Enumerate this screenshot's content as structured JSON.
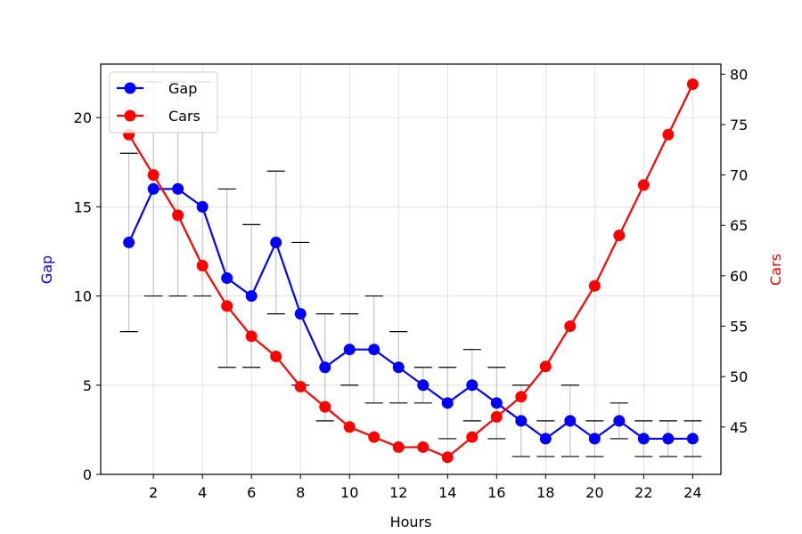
{
  "chart_data": {
    "type": "line",
    "xlabel": "Hours",
    "ylabel_left": "Gap",
    "ylabel_right": "Cars",
    "x": [
      1,
      2,
      3,
      4,
      5,
      6,
      7,
      8,
      9,
      10,
      11,
      12,
      13,
      14,
      15,
      16,
      17,
      18,
      19,
      20,
      21,
      22,
      23,
      24
    ],
    "x_ticks": [
      2,
      4,
      6,
      8,
      10,
      12,
      14,
      16,
      18,
      20,
      22,
      24
    ],
    "y_left_ticks": [
      0,
      5,
      10,
      15,
      20
    ],
    "y_right_ticks": [
      45,
      50,
      55,
      60,
      65,
      70,
      75,
      80
    ],
    "xlim": [
      -0.15,
      25.15
    ],
    "ylim_left": [
      0,
      23
    ],
    "ylim_right": [
      40.3,
      81.0
    ],
    "grid": true,
    "legend_position": "upper-left",
    "series": [
      {
        "name": "Gap",
        "axis": "left",
        "color": "#0000ff",
        "values": [
          13,
          16,
          16,
          15,
          11,
          10,
          13,
          9,
          6,
          7,
          7,
          6,
          5,
          4,
          5,
          4,
          3,
          2,
          3,
          2,
          3,
          2,
          2,
          2
        ],
        "error_low": [
          8,
          10,
          10,
          10,
          6,
          6,
          9,
          5,
          3,
          5,
          4,
          4,
          4,
          2,
          3,
          2,
          1,
          1,
          1,
          1,
          2,
          1,
          1,
          1
        ],
        "error_high": [
          18,
          22,
          22,
          22,
          16,
          14,
          17,
          13,
          9,
          9,
          10,
          8,
          6,
          6,
          7,
          6,
          5,
          3,
          5,
          3,
          4,
          3,
          3,
          3
        ]
      },
      {
        "name": "Cars",
        "axis": "right",
        "color": "#ff0000",
        "values": [
          74,
          70,
          66,
          61,
          57,
          54,
          52,
          49,
          47,
          45,
          44,
          43,
          43,
          42,
          44,
          46,
          48,
          51,
          55,
          59,
          64,
          69,
          74,
          79
        ]
      }
    ]
  }
}
